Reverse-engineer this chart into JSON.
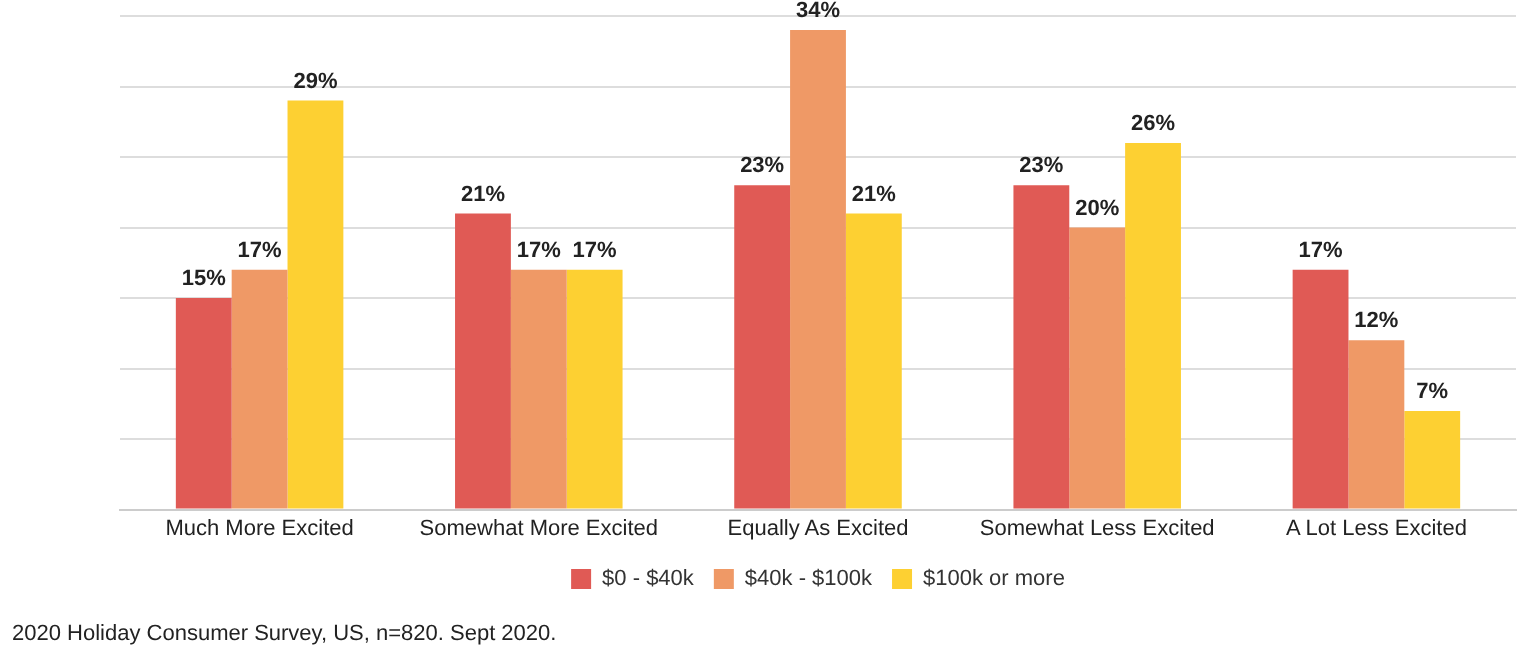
{
  "chart_data": {
    "type": "bar",
    "categories": [
      "Much More Excited",
      "Somewhat More Excited",
      "Equally As Excited",
      "Somewhat Less Excited",
      "A Lot Less Excited"
    ],
    "series": [
      {
        "name": "$0 - $40k",
        "color": "#e05a55",
        "values": [
          15,
          21,
          23,
          23,
          17
        ],
        "value_labels": [
          "15%",
          "21%",
          "23%",
          "23%",
          "17%"
        ]
      },
      {
        "name": "$40k - $100k",
        "color": "#ef9966",
        "values": [
          17,
          17,
          34,
          20,
          12
        ],
        "value_labels": [
          "17%",
          "17%",
          "34%",
          "20%",
          "12%"
        ]
      },
      {
        "name": "$100k or more",
        "color": "#fdd032",
        "values": [
          29,
          17,
          21,
          26,
          7
        ],
        "value_labels": [
          "29%",
          "17%",
          "21%",
          "26%",
          "7%"
        ]
      }
    ],
    "ylim": [
      0,
      35
    ],
    "yticks": [
      {
        "value": 0,
        "label": null
      },
      {
        "value": 5,
        "label": null
      },
      {
        "value": 10,
        "label": null
      },
      {
        "value": 15,
        "label": null
      },
      {
        "value": 20,
        "label": null
      },
      {
        "value": 25,
        "label": null
      },
      {
        "value": 30,
        "label": null
      },
      {
        "value": 35,
        "label": null
      }
    ],
    "tick_labels": "x",
    "grid": "y",
    "legend": "bottom",
    "annotations": [
      "2020 Holiday Consumer Survey, US, n=820. Sept 2020."
    ]
  }
}
